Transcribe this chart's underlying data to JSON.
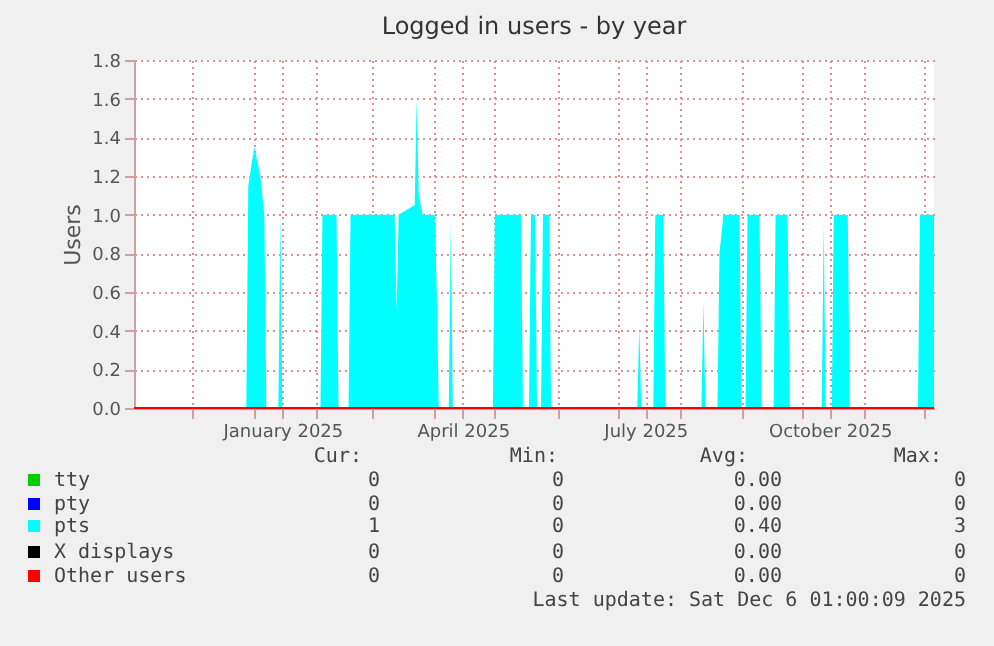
{
  "chart_data": {
    "type": "area",
    "title": "Logged in users - by year",
    "ylabel": "Users",
    "xlim": [
      "2024-11-02",
      "2025-12-06"
    ],
    "xticks": [
      {
        "value": "2024-12-01",
        "label": null
      },
      {
        "value": "2025-01-01",
        "label": null
      },
      {
        "value": "2025-01-15",
        "label": "January 2025"
      },
      {
        "value": "2025-02-01",
        "label": null
      },
      {
        "value": "2025-03-01",
        "label": null
      },
      {
        "value": "2025-04-01",
        "label": null
      },
      {
        "value": "2025-04-15",
        "label": "April 2025"
      },
      {
        "value": "2025-05-01",
        "label": null
      },
      {
        "value": "2025-06-01",
        "label": null
      },
      {
        "value": "2025-07-01",
        "label": null
      },
      {
        "value": "2025-07-15",
        "label": "July 2025"
      },
      {
        "value": "2025-08-01",
        "label": null
      },
      {
        "value": "2025-09-01",
        "label": null
      },
      {
        "value": "2025-10-01",
        "label": null
      },
      {
        "value": "2025-10-15",
        "label": "October 2025"
      },
      {
        "value": "2025-11-01",
        "label": null
      },
      {
        "value": "2025-12-01",
        "label": null
      }
    ],
    "ylim": [
      0,
      1.8
    ],
    "yticks": [
      {
        "value": 0,
        "label": "0.0"
      },
      0.2,
      0.4,
      0.6,
      0.8,
      {
        "value": 1,
        "label": "1.0"
      },
      1.2,
      1.4,
      1.6,
      1.8
    ],
    "grid": true,
    "legend": "bottom",
    "series": [
      {
        "name": "tty",
        "color": "#00cc00"
      },
      {
        "name": "pty",
        "color": "#0000ff"
      },
      {
        "name": "pts",
        "color": "#00ffff",
        "x": [
          "2024-11-02",
          "2024-12-28",
          "2024-12-29",
          "2025-01-01",
          "2025-01-04",
          "2025-01-06",
          "2025-01-07",
          "2025-01-13",
          "2025-01-14",
          "2025-01-15",
          "2025-02-03",
          "2025-02-04",
          "2025-02-11",
          "2025-02-12",
          "2025-02-17",
          "2025-02-18",
          "2025-03-12",
          "2025-03-13",
          "2025-03-14",
          "2025-03-22",
          "2025-03-23",
          "2025-03-24",
          "2025-03-26",
          "2025-04-01",
          "2025-04-02",
          "2025-04-03",
          "2025-04-08",
          "2025-04-09",
          "2025-04-10",
          "2025-04-30",
          "2025-05-01",
          "2025-05-14",
          "2025-05-15",
          "2025-05-18",
          "2025-05-19",
          "2025-05-21",
          "2025-05-22",
          "2025-05-24",
          "2025-05-25",
          "2025-05-28",
          "2025-05-29",
          "2025-07-11",
          "2025-07-12",
          "2025-07-13",
          "2025-07-19",
          "2025-07-20",
          "2025-07-24",
          "2025-07-25",
          "2025-08-12",
          "2025-08-13",
          "2025-08-14",
          "2025-08-20",
          "2025-08-21",
          "2025-08-23",
          "2025-08-31",
          "2025-09-01",
          "2025-09-03",
          "2025-09-04",
          "2025-09-10",
          "2025-09-11",
          "2025-09-17",
          "2025-09-18",
          "2025-09-24",
          "2025-09-25",
          "2025-10-11",
          "2025-10-12",
          "2025-10-13",
          "2025-10-16",
          "2025-10-17",
          "2025-10-24",
          "2025-10-25",
          "2025-11-28",
          "2025-11-29",
          "2025-12-06"
        ],
        "values": [
          0,
          0,
          1.15,
          1.35,
          1.2,
          1.0,
          0,
          0,
          1.0,
          0,
          0,
          1.0,
          1.0,
          0,
          0,
          1.0,
          1.0,
          0.5,
          1.0,
          1.05,
          1.6,
          1.1,
          1.0,
          1.0,
          0.6,
          0,
          0,
          0.95,
          0,
          0,
          1.0,
          1.0,
          0,
          0,
          1.0,
          1.0,
          0,
          0,
          1.0,
          1.0,
          0,
          0,
          0.42,
          0,
          0,
          1.0,
          1.0,
          0,
          0,
          0.55,
          0,
          0,
          0.8,
          1.0,
          1.0,
          0,
          0,
          1.0,
          1.0,
          0,
          0,
          1.0,
          1.0,
          0,
          0,
          0.95,
          0,
          0,
          1.0,
          1.0,
          0,
          0,
          1.0,
          1.0
        ]
      },
      {
        "name": "X displays",
        "color": "#000000"
      },
      {
        "name": "Other users",
        "color": "#ff0000",
        "type": "line",
        "x": [
          "2024-11-02",
          "2025-12-06"
        ],
        "values": [
          0,
          0
        ]
      }
    ],
    "annotations": [
      "Cur:",
      "Min:",
      "Avg:",
      "Max:",
      "0",
      "0",
      "0.00",
      "0",
      "0",
      "0",
      "0.00",
      "0",
      "1",
      "0",
      "0.40",
      "3",
      "0",
      "0",
      "0.00",
      "0",
      "0",
      "0",
      "0.00",
      "0",
      "Last update: Sat Dec  6 01:00:09 2025"
    ]
  }
}
